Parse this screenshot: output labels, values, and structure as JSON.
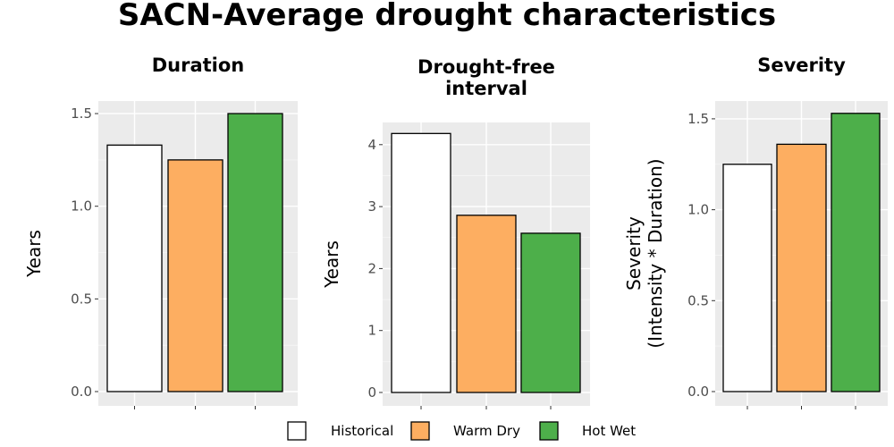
{
  "figure": {
    "title": "SACN-Average drought characteristics"
  },
  "legend": [
    {
      "label": "Historical",
      "color": "#ffffff"
    },
    {
      "label": "Warm Dry",
      "color": "#fdae61"
    },
    {
      "label": "Hot Wet",
      "color": "#4daf4a"
    }
  ],
  "chart_data": [
    {
      "type": "bar",
      "title": "Duration",
      "ylabel": "Years",
      "xlabel": "",
      "categories": [
        "Historical",
        "Warm Dry",
        "Hot Wet"
      ],
      "values": [
        1.33,
        1.25,
        1.5
      ],
      "ylim": [
        0,
        1.5
      ],
      "yticks": [
        "0.0",
        "0.5",
        "1.0",
        "1.5"
      ],
      "grid": true
    },
    {
      "type": "bar",
      "title": "Drought-free interval",
      "title_lines": [
        "Drought-free",
        "interval"
      ],
      "ylabel": "Years",
      "xlabel": "",
      "categories": [
        "Historical",
        "Warm Dry",
        "Hot Wet"
      ],
      "values": [
        4.18,
        2.86,
        2.57
      ],
      "ylim": [
        0,
        4.2
      ],
      "yticks": [
        "0",
        "1",
        "2",
        "3",
        "4"
      ],
      "grid": true
    },
    {
      "type": "bar",
      "title": "Severity",
      "ylabel": "Severity (Intensity * Duration)",
      "ylabel_lines": [
        "Severity",
        "(Intensity * Duration)"
      ],
      "xlabel": "",
      "categories": [
        "Historical",
        "Warm Dry",
        "Hot Wet"
      ],
      "values": [
        1.25,
        1.36,
        1.53
      ],
      "ylim": [
        0,
        1.53
      ],
      "yticks": [
        "0.0",
        "0.5",
        "1.0",
        "1.5"
      ],
      "grid": true
    }
  ]
}
